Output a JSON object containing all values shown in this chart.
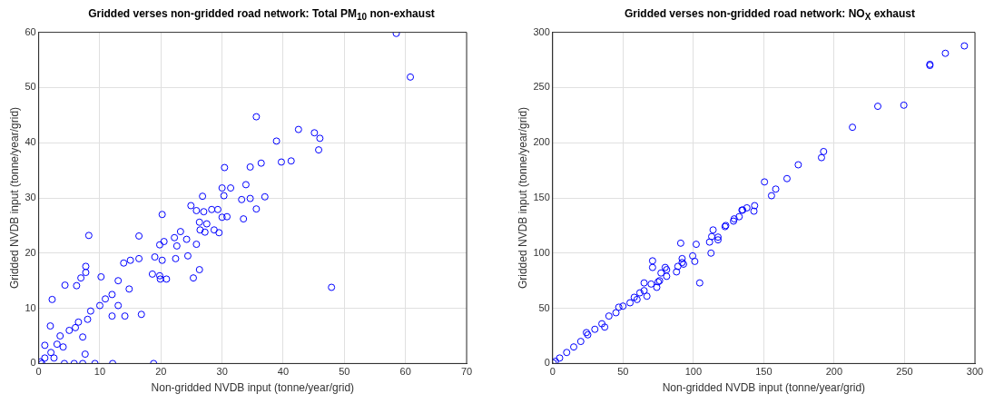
{
  "chart_data": [
    {
      "type": "scatter",
      "title": "Gridded verses non-gridded road network: Total PM$_{10}$ non-exhaust",
      "xlabel": "Non-gridded NVDB input (tonne/year/grid)",
      "ylabel": "Gridded NVDB input (tonne/year/grid)",
      "xlim": [
        0,
        70
      ],
      "ylim": [
        0,
        60
      ],
      "xticks": [
        0,
        10,
        20,
        30,
        40,
        50,
        60,
        70
      ],
      "yticks": [
        0,
        10,
        20,
        30,
        40,
        50,
        60
      ],
      "grid": true,
      "marker": "circle",
      "series": [
        {
          "color": "#0000ff",
          "x": [
            58.5,
            60.8,
            35.6,
            42.5,
            45.1,
            46,
            38.9,
            45.8,
            39.7,
            41.3,
            36.4,
            34.6,
            30.4,
            33.9,
            30,
            31.4,
            26.8,
            30.3,
            37,
            33.2,
            34.6,
            24.9,
            25.8,
            27,
            28.3,
            29.3,
            35.6,
            20.2,
            30,
            30.8,
            33.5,
            26.3,
            27.5,
            26.4,
            27.2,
            28.7,
            29.5,
            8.2,
            16.4,
            23.2,
            22.2,
            24.2,
            20.5,
            19.8,
            22.6,
            25.8,
            22.4,
            24.4,
            19,
            20.2,
            13.9,
            15,
            16.4,
            26.3,
            7.7,
            7.7,
            18.6,
            19.8,
            19.9,
            20.9,
            25.3,
            10.2,
            6.9,
            4.3,
            6.2,
            14.8,
            13,
            12,
            10.9,
            2.2,
            14.1,
            16.8,
            12,
            13,
            10,
            8.5,
            6.5,
            5,
            1.9,
            3.5,
            7.2,
            7.6,
            4,
            2,
            1,
            0.3,
            0.5,
            4.2,
            5.8,
            7.2,
            9.2,
            12.1,
            18.8,
            47.9,
            1,
            2.5,
            3,
            6,
            8
          ],
          "values": [
            59.8,
            51.9,
            44.7,
            42.4,
            41.8,
            40.8,
            40.3,
            38.7,
            36.5,
            36.7,
            36.3,
            35.6,
            35.5,
            32.4,
            31.8,
            31.8,
            30.3,
            30.4,
            30.2,
            29.7,
            29.9,
            28.6,
            27.7,
            27.5,
            27.9,
            27.9,
            28,
            27,
            26.5,
            26.6,
            26.2,
            25.6,
            25.3,
            24.2,
            23.8,
            24.2,
            23.7,
            23.2,
            23.1,
            23.9,
            22.8,
            22.5,
            22.1,
            21.5,
            21.3,
            21.6,
            19,
            19.5,
            19.3,
            18.7,
            18.2,
            18.7,
            19,
            17,
            17.6,
            16.5,
            16.2,
            15.9,
            15.3,
            15.3,
            15.5,
            15.7,
            15.5,
            14.2,
            14.1,
            13.5,
            15,
            12.5,
            11.7,
            11.6,
            8.6,
            8.9,
            8.6,
            10.5,
            10.5,
            9.5,
            7.5,
            6,
            6.8,
            5,
            4.8,
            1.7,
            3,
            2,
            1,
            0.3,
            0,
            0,
            0,
            0,
            0,
            0,
            0,
            13.8,
            3.3,
            1,
            3.5,
            6.5,
            8
          ]
        }
      ]
    },
    {
      "type": "scatter",
      "title": "Gridded verses non-gridded road network: NO$_{X}$ exhaust",
      "xlabel": "Non-gridded NVDB input (tonne/year/grid)",
      "ylabel": "Gridded NVDB input (tonne/year/grid)",
      "xlim": [
        0,
        300
      ],
      "ylim": [
        0,
        300
      ],
      "xticks": [
        0,
        50,
        100,
        150,
        200,
        250,
        300
      ],
      "yticks": [
        0,
        50,
        100,
        150,
        200,
        250,
        300
      ],
      "grid": true,
      "marker": "circle",
      "series": [
        {
          "color": "#0000ff",
          "x": [
            292.5,
            279,
            268,
            268,
            249.5,
            231,
            213,
            192.5,
            191,
            174.5,
            166.5,
            158.5,
            150.5,
            155.5,
            143.5,
            143,
            138,
            135,
            134.5,
            132.5,
            129,
            128.5,
            123,
            122.5,
            117.5,
            117.5,
            114,
            113,
            111.5,
            112.5,
            102,
            91,
            104.5,
            101,
            99.5,
            92,
            92,
            93,
            89,
            88,
            80,
            81,
            81,
            77,
            76,
            71,
            71,
            70,
            75,
            74,
            67,
            65,
            65,
            62,
            60,
            58,
            55,
            50,
            47,
            45,
            40,
            35,
            30,
            25,
            20,
            15,
            10,
            5,
            2,
            0.5,
            24,
            37
          ],
          "values": [
            287.7,
            281,
            270,
            271,
            234,
            233,
            214,
            192,
            186.5,
            180,
            167.5,
            158,
            164.5,
            152,
            143,
            138,
            141,
            139,
            139,
            133,
            131,
            129,
            125,
            124,
            114.5,
            112,
            121,
            115,
            110,
            100,
            108,
            109,
            73,
            92.5,
            97.5,
            95,
            91.5,
            90,
            88,
            83,
            87,
            85,
            79,
            82,
            75,
            93,
            87,
            72,
            74,
            69,
            61,
            66,
            73,
            64,
            58,
            60,
            55,
            52,
            51,
            46,
            43,
            36,
            31,
            26,
            20,
            15,
            10,
            5,
            2,
            0.5,
            28,
            33
          ]
        }
      ]
    }
  ]
}
